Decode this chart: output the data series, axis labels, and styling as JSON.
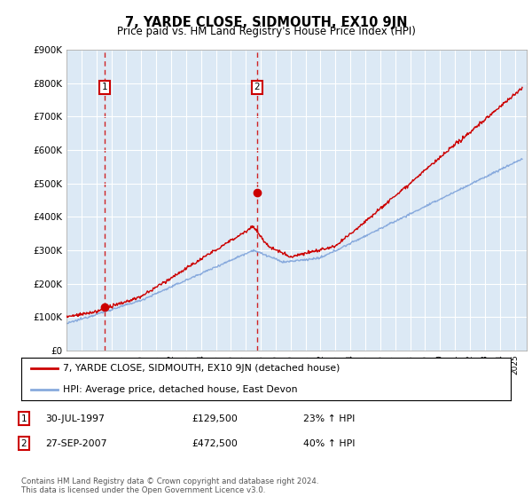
{
  "title": "7, YARDE CLOSE, SIDMOUTH, EX10 9JN",
  "subtitle": "Price paid vs. HM Land Registry's House Price Index (HPI)",
  "ylim": [
    0,
    900000
  ],
  "xlim_start": 1995.0,
  "xlim_end": 2025.8,
  "ytick_labels": [
    "£0",
    "£100K",
    "£200K",
    "£300K",
    "£400K",
    "£500K",
    "£600K",
    "£700K",
    "£800K",
    "£900K"
  ],
  "ytick_values": [
    0,
    100000,
    200000,
    300000,
    400000,
    500000,
    600000,
    700000,
    800000,
    900000
  ],
  "line1_color": "#cc0000",
  "line2_color": "#88aadd",
  "marker_color": "#cc0000",
  "purchase1_year": 1997.57,
  "purchase1_price": 129500,
  "purchase2_year": 2007.74,
  "purchase2_price": 472500,
  "legend1": "7, YARDE CLOSE, SIDMOUTH, EX10 9JN (detached house)",
  "legend2": "HPI: Average price, detached house, East Devon",
  "table_row1": [
    "1",
    "30-JUL-1997",
    "£129,500",
    "23% ↑ HPI"
  ],
  "table_row2": [
    "2",
    "27-SEP-2007",
    "£472,500",
    "40% ↑ HPI"
  ],
  "footnote": "Contains HM Land Registry data © Crown copyright and database right 2024.\nThis data is licensed under the Open Government Licence v3.0.",
  "bg_color": "#dce9f5"
}
